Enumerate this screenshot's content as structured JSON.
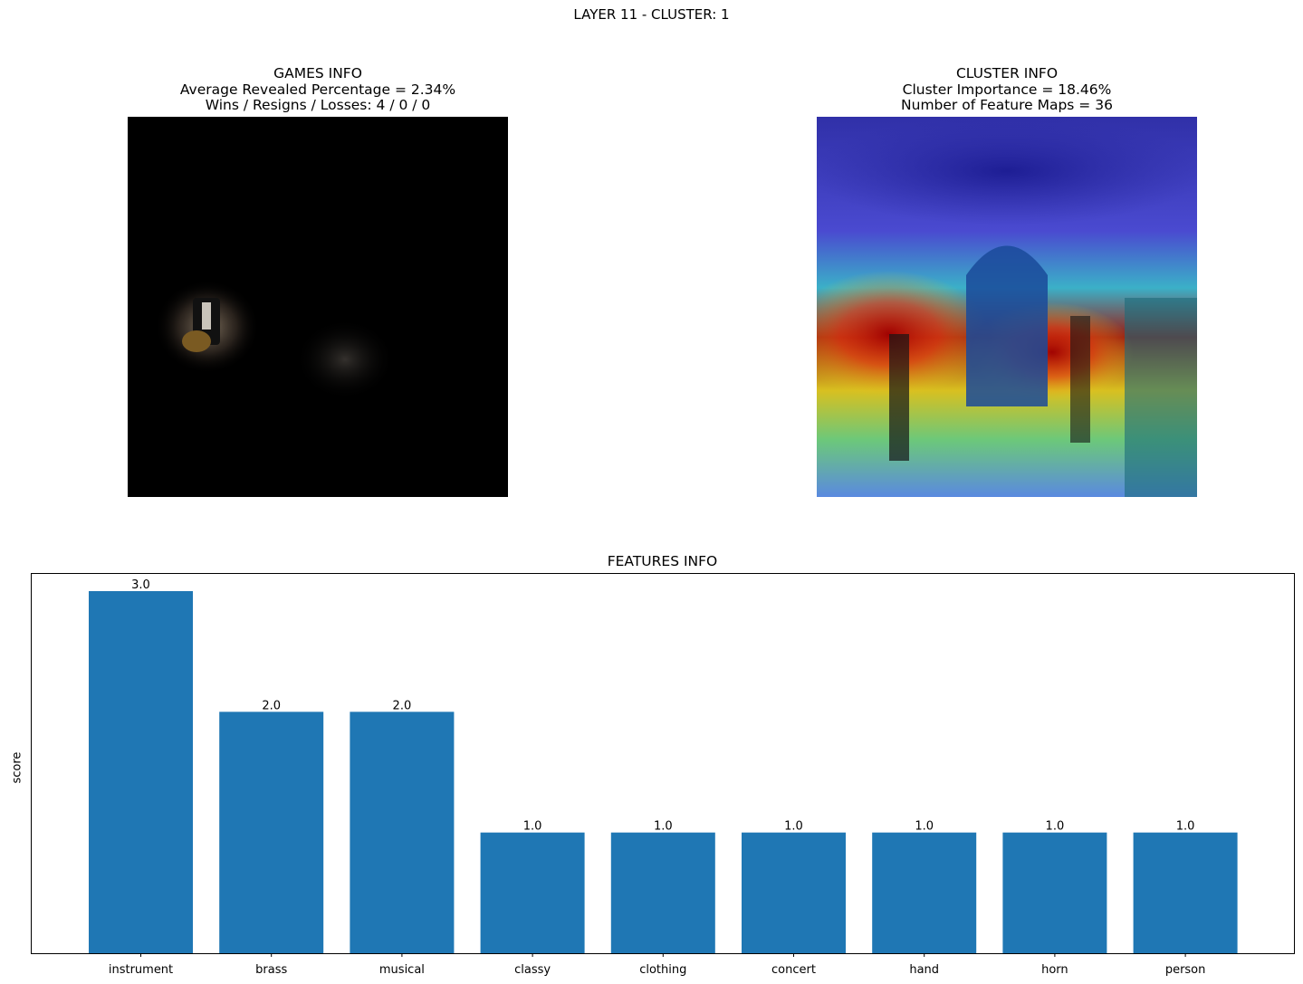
{
  "suptitle": "LAYER 11 - CLUSTER: 1",
  "games_info": {
    "title": "GAMES INFO",
    "line1": "Average Revealed Percentage = 2.34%",
    "line2": "Wins / Resigns / Losses: 4 / 0 / 0"
  },
  "cluster_info": {
    "title": "CLUSTER INFO",
    "line1": "Cluster Importance = 18.46%",
    "line2": "Number of Feature Maps = 36"
  },
  "chart_data": {
    "type": "bar",
    "title": "FEATURES INFO",
    "xlabel": "",
    "ylabel": "score",
    "categories": [
      "instrument",
      "brass",
      "musical",
      "classy",
      "clothing",
      "concert",
      "hand",
      "horn",
      "person"
    ],
    "values": [
      3.0,
      2.0,
      2.0,
      1.0,
      1.0,
      1.0,
      1.0,
      1.0,
      1.0
    ],
    "value_labels": [
      "3.0",
      "2.0",
      "2.0",
      "1.0",
      "1.0",
      "1.0",
      "1.0",
      "1.0",
      "1.0"
    ],
    "ylim": [
      0,
      3.15
    ],
    "bar_color": "#1f77b4",
    "grid": false,
    "y_ticks_shown": false
  }
}
